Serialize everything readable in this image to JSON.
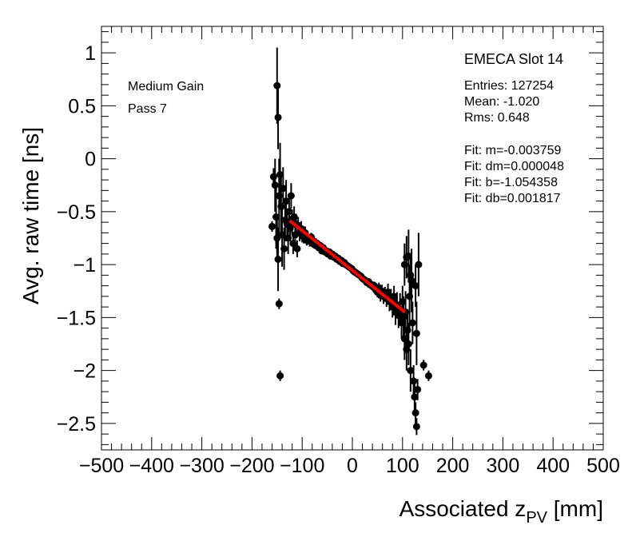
{
  "chart_data": {
    "type": "scatter",
    "xlabel": "Associated z",
    "xlabel_sub": "PV",
    "xlabel_unit": " [mm]",
    "ylabel": "Avg. raw time [ns]",
    "xlim": [
      -500,
      500
    ],
    "ylim": [
      -2.75,
      1.25
    ],
    "x_ticks": [
      -500,
      -400,
      -300,
      -200,
      -100,
      0,
      100,
      200,
      300,
      400,
      500
    ],
    "x_tick_labels": [
      "−500",
      "−400",
      "−300",
      "−200",
      "−100",
      "0",
      "100",
      "200",
      "300",
      "400",
      "500"
    ],
    "y_ticks": [
      1,
      0.5,
      0,
      -0.5,
      -1,
      -1.5,
      -2,
      -2.5
    ],
    "y_tick_labels": [
      "1",
      "0.5",
      "0",
      "−0.5",
      "−1",
      "−1.5",
      "−2",
      "−2.5"
    ],
    "annotations": [
      "Medium Gain",
      "Pass 7"
    ],
    "stats": {
      "title": "EMECA Slot 14",
      "lines": [
        "Entries: 127254",
        "Mean: -1.020",
        "Rms: 0.648",
        "",
        "Fit: m=-0.003759",
        "Fit: dm=0.000048",
        "Fit: b=-1.054358",
        "Fit: db=0.001817"
      ]
    },
    "fit": {
      "slope": -0.003759,
      "intercept": -1.054358,
      "x_range": [
        -125,
        105
      ],
      "color": "#ff0000"
    },
    "series": [
      {
        "name": "data",
        "color": "#000000",
        "points": [
          [
            -160,
            -0.64,
            0.05
          ],
          [
            -157,
            -0.17,
            0.08
          ],
          [
            -154,
            -0.25,
            0.25
          ],
          [
            -150,
            0.69,
            0.36
          ],
          [
            -148,
            0.39,
            0.3
          ],
          [
            -152,
            -0.55,
            0.3
          ],
          [
            -150,
            -0.75,
            0.2
          ],
          [
            -148,
            -0.95,
            0.3
          ],
          [
            -146,
            -1.37,
            0.05
          ],
          [
            -144,
            -2.05,
            0.05
          ],
          [
            -146,
            -0.35,
            0.35
          ],
          [
            -144,
            -0.15,
            0.3
          ],
          [
            -142,
            -0.45,
            0.3
          ],
          [
            -140,
            -0.72,
            0.3
          ],
          [
            -138,
            -0.28,
            0.2
          ],
          [
            -136,
            -0.85,
            0.2
          ],
          [
            -134,
            -0.58,
            0.2
          ],
          [
            -132,
            -0.4,
            0.2
          ],
          [
            -130,
            -0.62,
            0.15
          ],
          [
            -128,
            -0.75,
            0.15
          ],
          [
            -126,
            -0.5,
            0.15
          ],
          [
            -124,
            -0.66,
            0.12
          ],
          [
            -122,
            -0.35,
            0.12
          ],
          [
            -120,
            -0.6,
            0.12
          ],
          [
            -118,
            -0.8,
            0.1
          ],
          [
            -116,
            -0.55,
            0.1
          ],
          [
            -114,
            -0.72,
            0.1
          ],
          [
            -112,
            -0.62,
            0.1
          ],
          [
            -110,
            -0.85,
            0.08
          ],
          [
            -108,
            -0.63,
            0.08
          ],
          [
            -105,
            -0.7,
            0.08
          ],
          [
            -102,
            -0.66,
            0.07
          ],
          [
            -100,
            -0.72,
            0.07
          ],
          [
            -97,
            -0.74,
            0.06
          ],
          [
            -94,
            -0.7,
            0.06
          ],
          [
            -91,
            -0.77,
            0.05
          ],
          [
            -88,
            -0.76,
            0.05
          ],
          [
            -85,
            -0.78,
            0.05
          ],
          [
            -82,
            -0.74,
            0.04
          ],
          [
            -79,
            -0.8,
            0.04
          ],
          [
            -76,
            -0.78,
            0.04
          ],
          [
            -73,
            -0.82,
            0.03
          ],
          [
            -70,
            -0.8,
            0.03
          ],
          [
            -67,
            -0.84,
            0.03
          ],
          [
            -64,
            -0.82,
            0.03
          ],
          [
            -61,
            -0.87,
            0.03
          ],
          [
            -58,
            -0.84,
            0.02
          ],
          [
            -55,
            -0.88,
            0.02
          ],
          [
            -52,
            -0.87,
            0.02
          ],
          [
            -49,
            -0.9,
            0.02
          ],
          [
            -46,
            -0.88,
            0.02
          ],
          [
            -43,
            -0.92,
            0.02
          ],
          [
            -40,
            -0.9,
            0.02
          ],
          [
            -37,
            -0.93,
            0.02
          ],
          [
            -34,
            -0.92,
            0.02
          ],
          [
            -31,
            -0.95,
            0.02
          ],
          [
            -28,
            -0.94,
            0.02
          ],
          [
            -25,
            -0.97,
            0.02
          ],
          [
            -22,
            -0.96,
            0.02
          ],
          [
            -19,
            -0.99,
            0.02
          ],
          [
            -16,
            -0.98,
            0.02
          ],
          [
            -13,
            -1.0,
            0.02
          ],
          [
            -10,
            -1.01,
            0.02
          ],
          [
            -7,
            -1.02,
            0.02
          ],
          [
            -4,
            -1.03,
            0.02
          ],
          [
            -1,
            -1.04,
            0.02
          ],
          [
            2,
            -1.06,
            0.02
          ],
          [
            5,
            -1.07,
            0.02
          ],
          [
            8,
            -1.08,
            0.02
          ],
          [
            11,
            -1.09,
            0.02
          ],
          [
            14,
            -1.1,
            0.02
          ],
          [
            17,
            -1.11,
            0.02
          ],
          [
            20,
            -1.13,
            0.03
          ],
          [
            23,
            -1.14,
            0.03
          ],
          [
            26,
            -1.15,
            0.03
          ],
          [
            29,
            -1.17,
            0.03
          ],
          [
            32,
            -1.16,
            0.03
          ],
          [
            35,
            -1.19,
            0.03
          ],
          [
            38,
            -1.19,
            0.04
          ],
          [
            41,
            -1.21,
            0.04
          ],
          [
            44,
            -1.2,
            0.04
          ],
          [
            47,
            -1.24,
            0.05
          ],
          [
            50,
            -1.26,
            0.05
          ],
          [
            53,
            -1.22,
            0.05
          ],
          [
            56,
            -1.29,
            0.06
          ],
          [
            59,
            -1.25,
            0.06
          ],
          [
            62,
            -1.3,
            0.07
          ],
          [
            65,
            -1.28,
            0.07
          ],
          [
            68,
            -1.32,
            0.08
          ],
          [
            71,
            -1.26,
            0.08
          ],
          [
            74,
            -1.35,
            0.09
          ],
          [
            77,
            -1.33,
            0.1
          ],
          [
            80,
            -1.4,
            0.1
          ],
          [
            83,
            -1.3,
            0.1
          ],
          [
            86,
            -1.45,
            0.12
          ],
          [
            89,
            -1.38,
            0.12
          ],
          [
            92,
            -1.48,
            0.12
          ],
          [
            95,
            -1.42,
            0.15
          ],
          [
            98,
            -1.55,
            0.15
          ],
          [
            100,
            -1.35,
            0.15
          ],
          [
            102,
            -1.5,
            0.2
          ],
          [
            104,
            -1.7,
            0.2
          ],
          [
            106,
            -1.45,
            0.2
          ],
          [
            108,
            -1.8,
            0.2
          ],
          [
            110,
            -1.62,
            0.2
          ],
          [
            112,
            -1.75,
            0.2
          ],
          [
            114,
            -1.3,
            0.3
          ],
          [
            116,
            -2.0,
            0.2
          ],
          [
            118,
            -1.15,
            0.3
          ],
          [
            120,
            -1.55,
            0.2
          ],
          [
            122,
            -2.1,
            0.15
          ],
          [
            124,
            -2.25,
            0.15
          ],
          [
            126,
            -2.4,
            0.1
          ],
          [
            128,
            -2.53,
            0.08
          ],
          [
            130,
            -2.18,
            0.1
          ],
          [
            104,
            -1.0,
            0.2
          ],
          [
            108,
            -0.93,
            0.2
          ],
          [
            112,
            -0.92,
            0.25
          ],
          [
            116,
            -1.1,
            0.2
          ],
          [
            126,
            -1.2,
            0.2
          ],
          [
            132,
            -1.0,
            0.3
          ],
          [
            128,
            -1.65,
            0.3
          ],
          [
            142,
            -1.95,
            0.05
          ],
          [
            152,
            -2.05,
            0.05
          ]
        ]
      }
    ]
  }
}
